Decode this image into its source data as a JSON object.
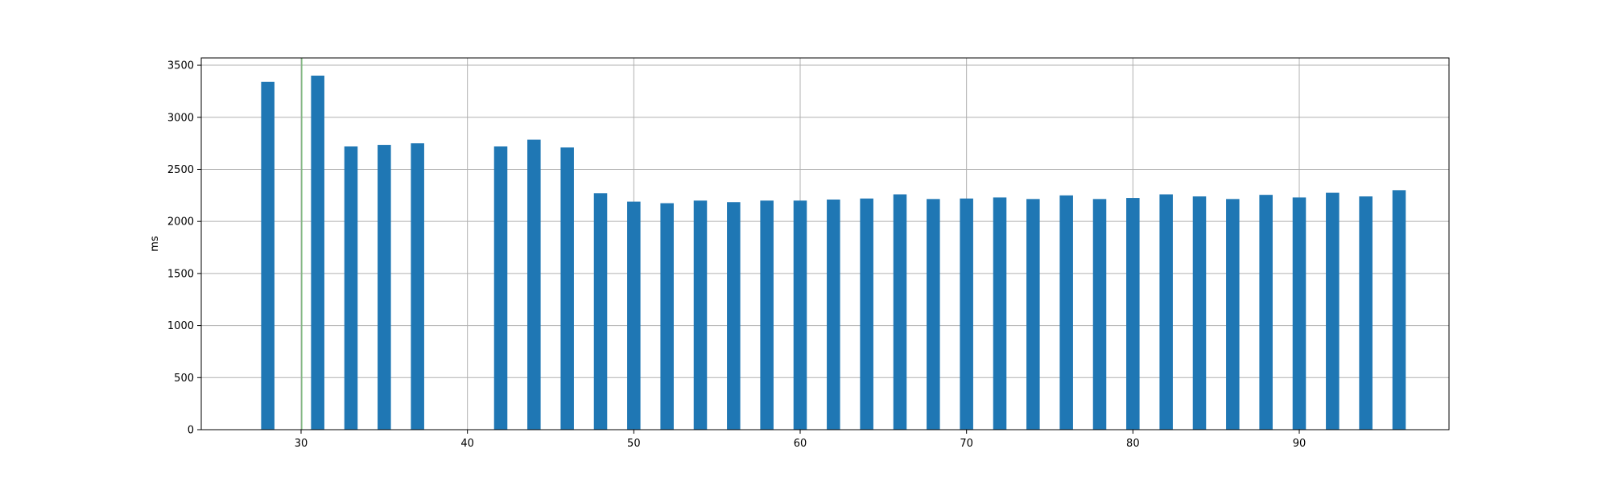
{
  "chart_data": {
    "type": "bar",
    "title": "",
    "xlabel": "",
    "ylabel": "ms",
    "xlim": [
      24,
      99
    ],
    "ylim": [
      0,
      3570
    ],
    "xticks": [
      30,
      40,
      50,
      60,
      70,
      80,
      90
    ],
    "yticks": [
      0,
      500,
      1000,
      1500,
      2000,
      2500,
      3000,
      3500
    ],
    "grid": true,
    "bar_width": 0.8,
    "colors": {
      "bar": "#1f77b4",
      "grid": "#b0b0b0",
      "marker_line": "#5cb85c"
    },
    "marker_line_x": 30,
    "x": [
      28,
      31,
      33,
      35,
      37,
      42,
      44,
      46,
      48,
      50,
      52,
      54,
      56,
      58,
      60,
      62,
      64,
      66,
      68,
      70,
      72,
      74,
      76,
      78,
      80,
      82,
      84,
      86,
      88,
      90,
      92,
      94,
      96
    ],
    "values": [
      3340,
      3400,
      2720,
      2735,
      2750,
      2720,
      2785,
      2710,
      2270,
      2190,
      2175,
      2200,
      2185,
      2200,
      2200,
      2210,
      2220,
      2260,
      2215,
      2220,
      2230,
      2215,
      2250,
      2215,
      2225,
      2260,
      2240,
      2215,
      2255,
      2230,
      2275,
      2240,
      2300
    ]
  }
}
